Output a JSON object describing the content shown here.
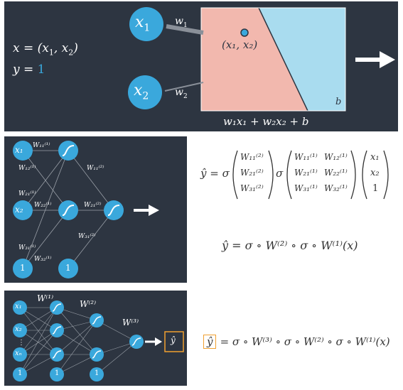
{
  "colors": {
    "panel_bg": "#2d3541",
    "node_blue": "#3aa8dc",
    "region_pink": "#f2b8ae",
    "region_blue": "#a9dcef",
    "highlight_orange": "#f0a030",
    "accent_blue": "#3aa8dc"
  },
  "top": {
    "x_def_prefix": "x = (x",
    "x_def_sub1": "1",
    "x_def_mid": ", x",
    "x_def_sub2": "2",
    "x_def_suffix": ")",
    "y_def_prefix": "y = ",
    "y_value": "1",
    "node1_main": "x",
    "node1_sub": "1",
    "node2_main": "x",
    "node2_sub": "2",
    "w1_main": "w",
    "w1_sub": "1",
    "w2_main": "w",
    "w2_sub": "2",
    "point_label": "(x₁, x₂)",
    "bias_label": "b",
    "formula": "w₁x₁ + w₂x₂ + b"
  },
  "middle": {
    "inputs": [
      "x₁",
      "x₂",
      "1"
    ],
    "bias_output": "1",
    "weights": [
      "W₁₁⁽¹⁾",
      "W₁₂⁽¹⁾",
      "W₂₁⁽¹⁾",
      "W₂₂⁽¹⁾",
      "W₃₁⁽¹⁾",
      "W₃₂⁽¹⁾",
      "W₁₁⁽²⁾",
      "W₂₁⁽²⁾",
      "W₃₁⁽²⁾"
    ],
    "eq_lhs": "ŷ = σ",
    "vec_w2": [
      "W₁₁⁽²⁾",
      "W₂₁⁽²⁾",
      "W₃₁⁽²⁾"
    ],
    "sigma": "σ",
    "mat_w1": [
      [
        "W₁₁⁽¹⁾",
        "W₁₂⁽¹⁾"
      ],
      [
        "W₂₁⁽¹⁾",
        "W₂₂⁽¹⁾"
      ],
      [
        "W₃₁⁽¹⁾",
        "W₃₂⁽¹⁾"
      ]
    ],
    "vec_x": [
      "x₁",
      "x₂",
      "1"
    ],
    "composition": "ŷ = σ ∘ W⁽²⁾ ∘ σ ∘ W⁽¹⁾(x)"
  },
  "bottom": {
    "inputs": [
      "x₁",
      "x₂",
      "⋮",
      "xₙ",
      "1"
    ],
    "layer_labels": [
      "W⁽¹⁾",
      "W⁽²⁾",
      "W⁽³⁾"
    ],
    "ones": [
      "1",
      "1",
      "1"
    ],
    "output": "ŷ",
    "eq_yhat": "ŷ",
    "eq_rest": "= σ ∘ W⁽³⁾ ∘ σ ∘ W⁽²⁾ ∘ σ ∘ W⁽¹⁾(x)"
  }
}
